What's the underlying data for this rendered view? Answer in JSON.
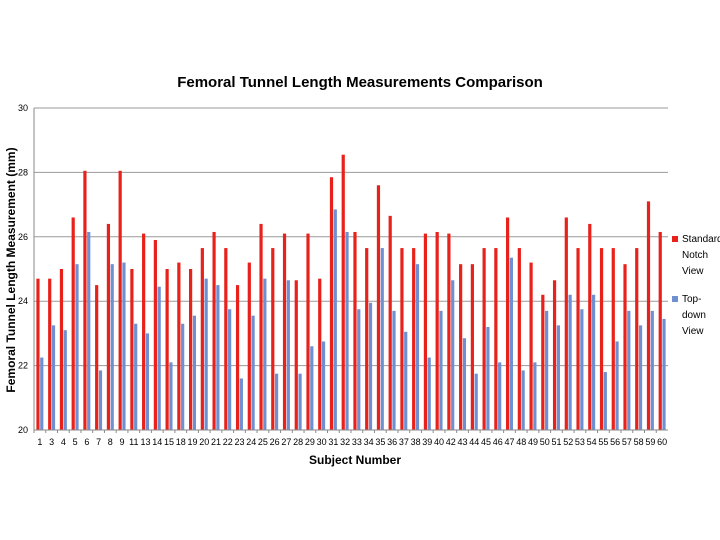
{
  "chart_data": {
    "type": "bar",
    "title": "Femoral Tunnel Length Measurements Comparison",
    "xlabel": "Subject Number",
    "ylabel": "Femoral Tunnel Length Measurement (mm)",
    "ylim": [
      20,
      30
    ],
    "yticks": [
      "20",
      "22",
      "24",
      "26",
      "28",
      "30"
    ],
    "grid": "horizontal",
    "legend_position": "right",
    "categories": [
      "1",
      "3",
      "4",
      "5",
      "6",
      "7",
      "8",
      "9",
      "11",
      "13",
      "14",
      "15",
      "18",
      "19",
      "20",
      "21",
      "22",
      "23",
      "24",
      "25",
      "26",
      "27",
      "28",
      "29",
      "30",
      "31",
      "32",
      "33",
      "34",
      "35",
      "36",
      "37",
      "38",
      "39",
      "40",
      "42",
      "43",
      "44",
      "45",
      "46",
      "47",
      "48",
      "49",
      "50",
      "51",
      "52",
      "53",
      "54",
      "55",
      "56",
      "57",
      "58",
      "59",
      "60"
    ],
    "series": [
      {
        "name": "Standard Notch View",
        "legend_lines": [
          "Standard",
          "Notch",
          "View"
        ],
        "color": "#e8221b",
        "values": [
          24.7,
          24.7,
          25.0,
          26.6,
          28.05,
          24.5,
          26.4,
          28.05,
          25.0,
          26.1,
          25.9,
          25.0,
          25.2,
          25.0,
          25.65,
          26.15,
          25.65,
          24.5,
          25.2,
          26.4,
          25.65,
          26.1,
          24.65,
          26.1,
          24.7,
          27.85,
          28.55,
          26.15,
          25.65,
          27.6,
          26.65,
          25.65,
          25.65,
          26.1,
          26.15,
          26.1,
          25.15,
          25.15,
          25.65,
          25.65,
          26.6,
          25.65,
          25.2,
          24.2,
          24.65,
          26.6,
          25.65,
          26.4,
          25.65,
          25.65,
          25.15,
          25.65,
          27.1,
          26.15
        ]
      },
      {
        "name": "Top-down View",
        "legend_lines": [
          "Top-",
          "down",
          "View"
        ],
        "color": "#6f8fd0",
        "values": [
          22.25,
          23.25,
          23.1,
          25.15,
          26.15,
          21.85,
          25.15,
          25.2,
          23.3,
          23.0,
          24.45,
          22.1,
          23.3,
          23.55,
          24.7,
          24.5,
          23.75,
          21.6,
          23.55,
          24.7,
          21.75,
          24.65,
          21.75,
          22.6,
          22.75,
          26.85,
          26.15,
          23.75,
          23.95,
          25.65,
          23.7,
          23.05,
          25.15,
          22.25,
          23.7,
          24.65,
          22.85,
          21.75,
          23.2,
          22.1,
          25.35,
          21.85,
          22.1,
          23.7,
          23.25,
          24.2,
          23.75,
          24.2,
          21.8,
          22.75,
          23.7,
          23.25,
          23.7,
          23.45
        ]
      }
    ]
  }
}
